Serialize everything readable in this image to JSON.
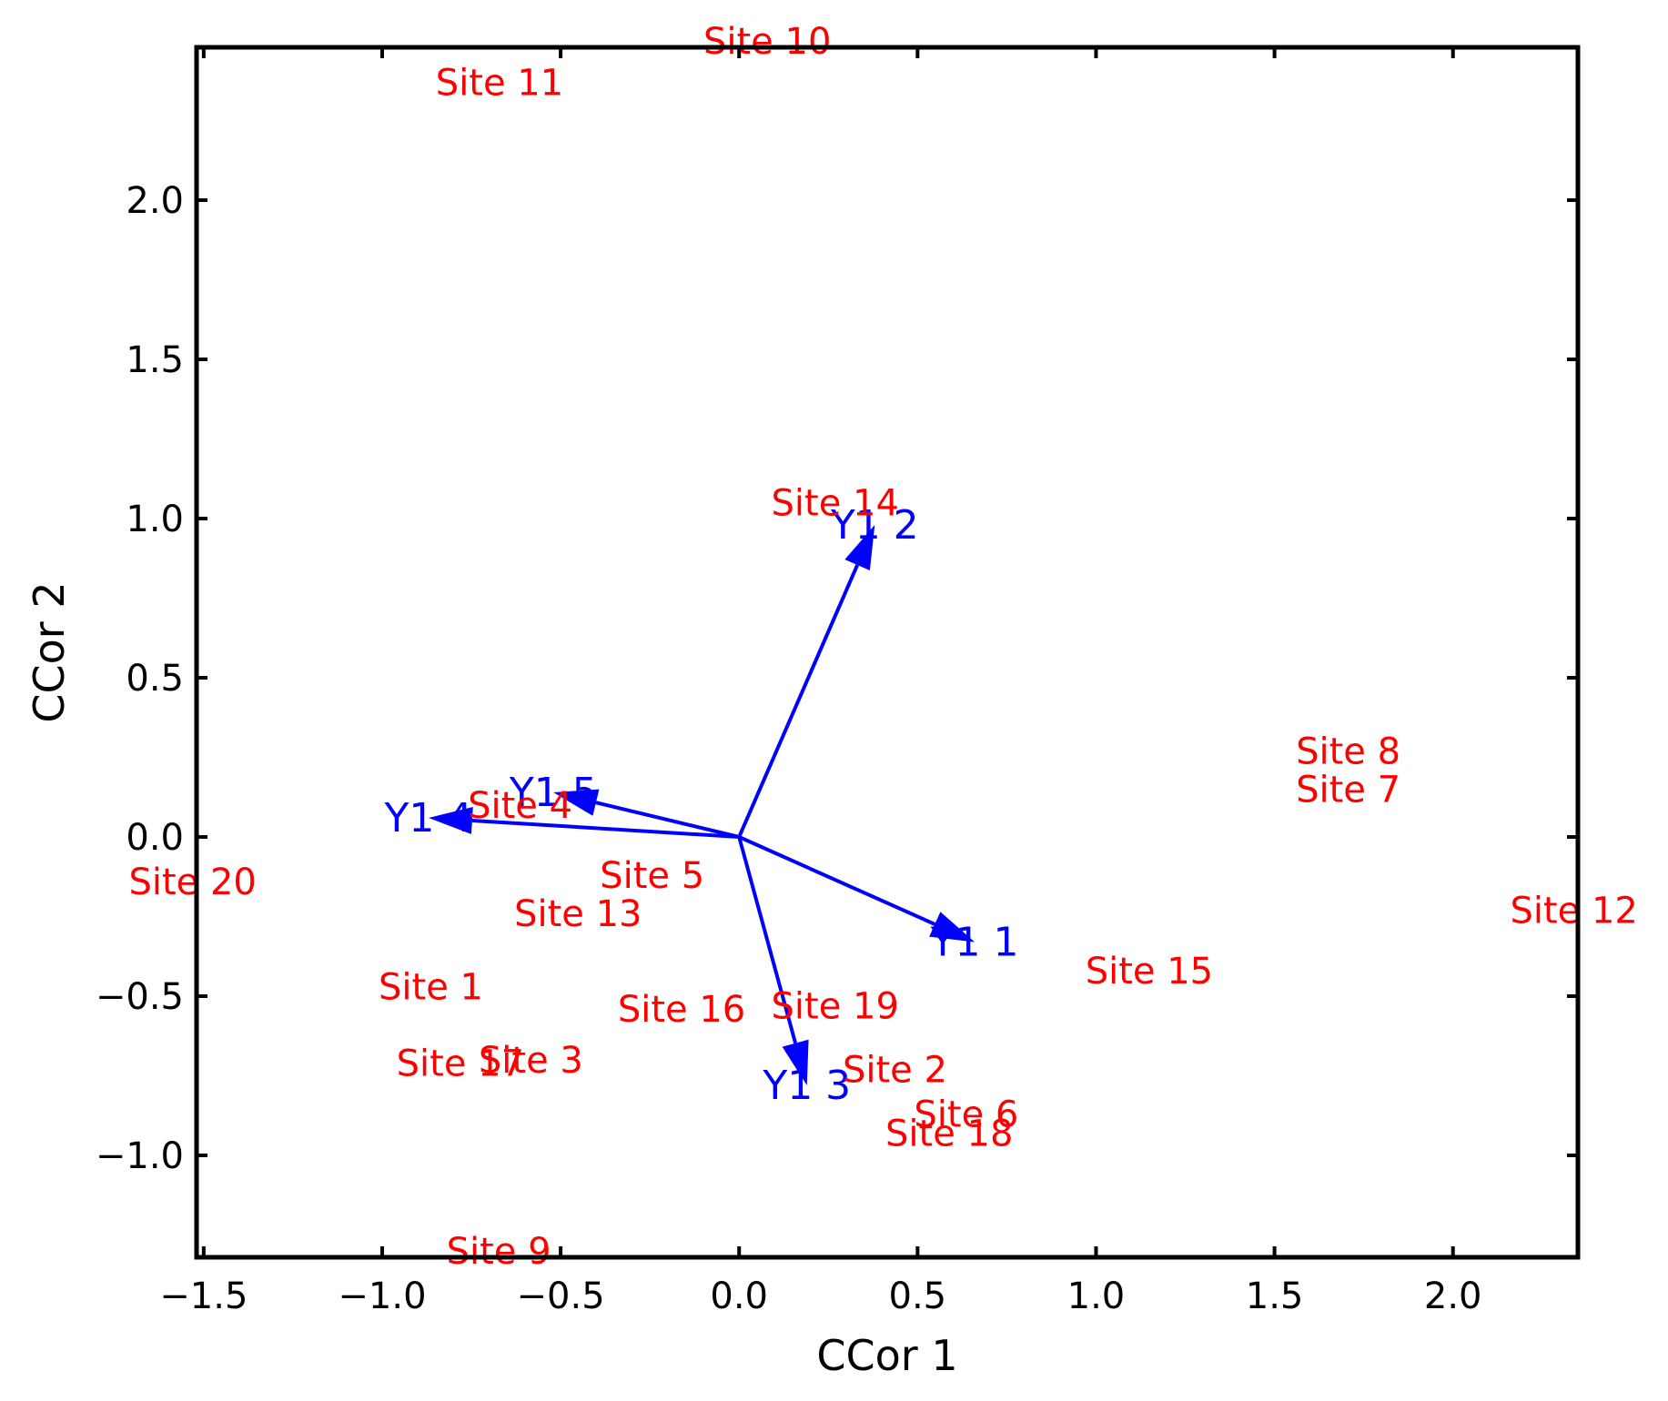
{
  "chart_data": {
    "type": "scatter",
    "title": "",
    "xlabel": "CCor 1",
    "ylabel": "CCor 2",
    "xlim": [
      -1.52,
      2.35
    ],
    "ylim": [
      -1.32,
      2.48
    ],
    "xticks": [
      -1.5,
      -1.0,
      -0.5,
      0.0,
      0.5,
      1.0,
      1.5,
      2.0
    ],
    "yticks": [
      -1.0,
      -0.5,
      0.0,
      0.5,
      1.0,
      1.5,
      2.0
    ],
    "xtick_labels": [
      "−1.5",
      "−1.0",
      "−0.5",
      "0.0",
      "0.5",
      "1.0",
      "1.5",
      "2.0"
    ],
    "ytick_labels": [
      "−1.0",
      "−0.5",
      "0.0",
      "0.5",
      "1.0",
      "1.5",
      "2.0"
    ],
    "grid": false,
    "site_color": "#ff0000",
    "vector_color": "#0000ff",
    "sites": [
      {
        "label": "Site 1",
        "x": -1.01,
        "y": -0.47
      },
      {
        "label": "Site 2",
        "x": 0.29,
        "y": -0.73
      },
      {
        "label": "Site 3",
        "x": -0.73,
        "y": -0.7
      },
      {
        "label": "Site 4",
        "x": -0.76,
        "y": 0.1
      },
      {
        "label": "Site 5",
        "x": -0.39,
        "y": -0.12
      },
      {
        "label": "Site 6",
        "x": 0.49,
        "y": -0.87
      },
      {
        "label": "Site 7",
        "x": 1.56,
        "y": 0.15
      },
      {
        "label": "Site 8",
        "x": 1.56,
        "y": 0.27
      },
      {
        "label": "Site 9",
        "x": -0.82,
        "y": -1.3
      },
      {
        "label": "Site 10",
        "x": -0.1,
        "y": 2.5
      },
      {
        "label": "Site 11",
        "x": -0.85,
        "y": 2.37
      },
      {
        "label": "Site 12",
        "x": 2.16,
        "y": -0.23
      },
      {
        "label": "Site 13",
        "x": -0.63,
        "y": -0.24
      },
      {
        "label": "Site 14",
        "x": 0.09,
        "y": 1.05
      },
      {
        "label": "Site 15",
        "x": 0.97,
        "y": -0.42
      },
      {
        "label": "Site 16",
        "x": -0.34,
        "y": -0.54
      },
      {
        "label": "Site 17",
        "x": -0.96,
        "y": -0.71
      },
      {
        "label": "Site 18",
        "x": 0.41,
        "y": -0.93
      },
      {
        "label": "Site 19",
        "x": 0.09,
        "y": -0.53
      },
      {
        "label": "Site 20",
        "x": -1.71,
        "y": -0.14
      }
    ],
    "vectors": [
      {
        "label": "Y1 1",
        "x": 0.66,
        "y": -0.33
      },
      {
        "label": "Y1 2",
        "x": 0.38,
        "y": 0.98
      },
      {
        "label": "Y1 3",
        "x": 0.19,
        "y": -0.78
      },
      {
        "label": "Y1 4",
        "x": -0.87,
        "y": 0.06
      },
      {
        "label": "Y1 5",
        "x": -0.52,
        "y": 0.14
      }
    ]
  }
}
